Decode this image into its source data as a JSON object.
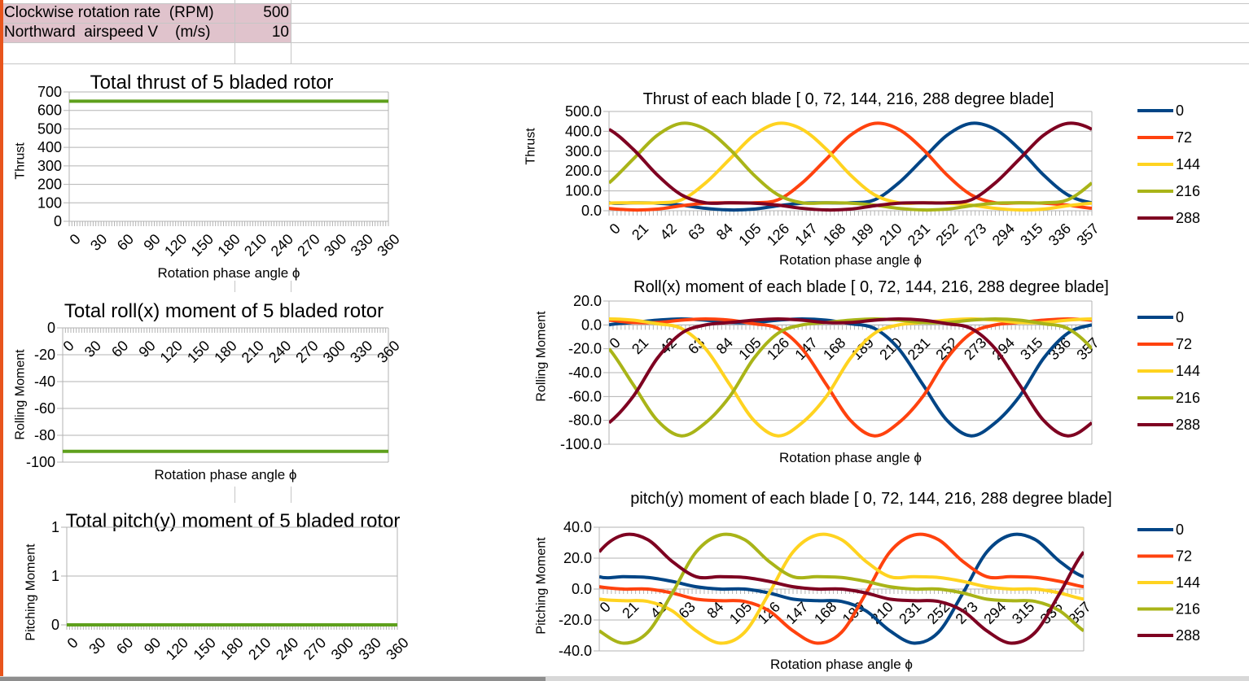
{
  "sheet": {
    "rows": [
      {
        "label": "Clockwise rotation rate  (RPM)",
        "value": "500"
      },
      {
        "label": "Northward  airspeed V    (m/s)",
        "value": "10"
      }
    ],
    "colors": {
      "input_fill": "#e0c3cc",
      "cell_cursor": "#e8541c"
    }
  },
  "chart_data": [
    {
      "id": "total-thrust",
      "type": "line",
      "title": "Total thrust  of 5 bladed rotor",
      "xlabel": "Rotation phase angle ϕ",
      "ylabel": "Thrust",
      "xlim": [
        0,
        360
      ],
      "ylim": [
        0,
        700
      ],
      "ytick_labels": [
        "0",
        "100",
        "200",
        "300",
        "400",
        "500",
        "600",
        "700"
      ],
      "xtick_values": [
        0,
        30,
        60,
        90,
        120,
        150,
        180,
        210,
        240,
        270,
        300,
        330,
        360
      ],
      "xtick_labels": [
        "0",
        "30",
        "60",
        "90",
        "120",
        "150",
        "180",
        "210",
        "240",
        "270",
        "300",
        "330",
        "360"
      ],
      "grid": true,
      "x": [
        0,
        360
      ],
      "series": [
        {
          "color": "#5ea01c",
          "values": [
            650,
            650
          ]
        }
      ]
    },
    {
      "id": "total-roll",
      "type": "line",
      "title": "Total roll(x) moment of 5 bladed rotor",
      "xlabel": "Rotation phase angle ϕ",
      "ylabel": "Rolling Moment",
      "xlim": [
        0,
        360
      ],
      "ylim": [
        -100,
        0
      ],
      "ytick_labels": [
        "-100",
        "-80",
        "-60",
        "-40",
        "-20",
        "0"
      ],
      "xtick_values": [
        0,
        30,
        60,
        90,
        120,
        150,
        180,
        210,
        240,
        270,
        300,
        330,
        360
      ],
      "xtick_labels": [
        "0",
        "30",
        "60",
        "90",
        "120",
        "150",
        "180",
        "210",
        "240",
        "270",
        "300",
        "330",
        "360"
      ],
      "grid": true,
      "x": [
        0,
        360
      ],
      "series": [
        {
          "color": "#5ea01c",
          "values": [
            -92,
            -92
          ]
        }
      ]
    },
    {
      "id": "total-pitch",
      "type": "line",
      "title": "Total pitch(y) moment of 5 bladed rotor",
      "xlabel": "",
      "ylabel": "Pitching Moment",
      "xlim": [
        0,
        360
      ],
      "ylim": [
        0,
        1
      ],
      "ytick_labels": [
        "0",
        "1",
        "1"
      ],
      "xtick_values": [
        0,
        30,
        60,
        90,
        120,
        150,
        180,
        210,
        240,
        270,
        300,
        330,
        360
      ],
      "xtick_labels": [
        "0",
        "30",
        "60",
        "90",
        "120",
        "150",
        "180",
        "210",
        "240",
        "270",
        "300",
        "330",
        "360"
      ],
      "grid": true,
      "x": [
        0,
        360
      ],
      "series": [
        {
          "color": "#5ea01c",
          "values": [
            0,
            0
          ]
        }
      ]
    },
    {
      "id": "blade-thrust",
      "type": "line",
      "title": "Thrust of each blade [ 0, 72, 144, 216, 288  degree blade]",
      "xlabel": "Rotation phase angle ϕ",
      "ylabel": "Thrust",
      "xlim": [
        0,
        360
      ],
      "ylim": [
        0,
        500
      ],
      "ytick_labels": [
        "0.0",
        "100.0",
        "200.0",
        "300.0",
        "400.0",
        "500.0"
      ],
      "xtick_values": [
        0,
        21,
        42,
        63,
        84,
        105,
        126,
        147,
        168,
        189,
        210,
        231,
        252,
        273,
        294,
        315,
        336,
        357
      ],
      "xtick_labels": [
        "0",
        "21",
        "42",
        "63",
        "84",
        "105",
        "126",
        "147",
        "168",
        "189",
        "210",
        "231",
        "252",
        "273",
        "294",
        "315",
        "336",
        "357"
      ],
      "grid": true,
      "legend": "right",
      "x": [
        0,
        18,
        36,
        54,
        72,
        90,
        108,
        126,
        144,
        162,
        180,
        198,
        216,
        234,
        252,
        270,
        288,
        306,
        324,
        342
      ],
      "series": [
        {
          "name": "0",
          "color": "#004586",
          "values": [
            40,
            40,
            38,
            28,
            12,
            4,
            8,
            25,
            38,
            40,
            40,
            55,
            140,
            260,
            380,
            440,
            410,
            310,
            180,
            80
          ]
        },
        {
          "name": "72",
          "color": "#ff420e",
          "values": [
            12,
            4,
            8,
            25,
            38,
            40,
            40,
            55,
            140,
            260,
            380,
            440,
            410,
            310,
            180,
            80,
            40,
            40,
            38,
            28
          ]
        },
        {
          "name": "144",
          "color": "#ffd320",
          "values": [
            38,
            40,
            40,
            55,
            140,
            260,
            380,
            440,
            410,
            310,
            180,
            80,
            40,
            40,
            38,
            28,
            12,
            4,
            8,
            25
          ]
        },
        {
          "name": "216",
          "color": "#a9b418",
          "values": [
            140,
            260,
            380,
            440,
            410,
            310,
            180,
            80,
            40,
            40,
            38,
            28,
            12,
            4,
            8,
            25,
            38,
            40,
            40,
            55
          ]
        },
        {
          "name": "288",
          "color": "#7e0021",
          "values": [
            410,
            310,
            180,
            80,
            40,
            40,
            38,
            28,
            12,
            4,
            8,
            25,
            38,
            40,
            40,
            55,
            140,
            260,
            380,
            440
          ]
        }
      ]
    },
    {
      "id": "blade-roll",
      "type": "line",
      "title": "Roll(x) moment of each blade [  0, 72, 144, 216, 288   degree blade]",
      "xlabel": "Rotation phase angle ϕ",
      "ylabel": "Rolling Moment",
      "xlim": [
        0,
        360
      ],
      "ylim": [
        -100,
        20
      ],
      "ytick_labels": [
        "-100.0",
        "-80.0",
        "-60.0",
        "-40.0",
        "-20.0",
        "0.0",
        "20.0"
      ],
      "xtick_values": [
        0,
        21,
        42,
        63,
        84,
        105,
        126,
        147,
        168,
        189,
        210,
        231,
        252,
        273,
        294,
        315,
        336,
        357
      ],
      "xtick_labels": [
        "0",
        "21",
        "42",
        "63",
        "84",
        "105",
        "126",
        "147",
        "168",
        "189",
        "210",
        "231",
        "252",
        "273",
        "294",
        "315",
        "336",
        "357"
      ],
      "grid": true,
      "legend": "right",
      "x": [
        0,
        18,
        36,
        54,
        72,
        90,
        108,
        126,
        144,
        162,
        180,
        198,
        216,
        234,
        252,
        270,
        288,
        306,
        324,
        342
      ],
      "series": [
        {
          "name": "0",
          "color": "#004586",
          "values": [
            0,
            2,
            4,
            5,
            4,
            2,
            2,
            4,
            5,
            4,
            1,
            -3,
            -20,
            -50,
            -80,
            -93,
            -82,
            -60,
            -28,
            -7
          ]
        },
        {
          "name": "72",
          "color": "#ff420e",
          "values": [
            4,
            2,
            2,
            4,
            5,
            4,
            1,
            -3,
            -20,
            -50,
            -80,
            -93,
            -82,
            -60,
            -28,
            -7,
            0,
            2,
            4,
            5
          ]
        },
        {
          "name": "144",
          "color": "#ffd320",
          "values": [
            5,
            4,
            1,
            -3,
            -20,
            -50,
            -80,
            -93,
            -82,
            -60,
            -28,
            -7,
            0,
            2,
            4,
            5,
            4,
            2,
            2,
            4
          ]
        },
        {
          "name": "216",
          "color": "#a9b418",
          "values": [
            -20,
            -50,
            -80,
            -93,
            -82,
            -60,
            -28,
            -7,
            0,
            2,
            4,
            5,
            4,
            2,
            2,
            4,
            5,
            4,
            1,
            -3
          ]
        },
        {
          "name": "288",
          "color": "#7e0021",
          "values": [
            -82,
            -60,
            -28,
            -7,
            0,
            2,
            4,
            5,
            4,
            2,
            2,
            4,
            5,
            4,
            1,
            -3,
            -20,
            -50,
            -80,
            -93
          ]
        }
      ]
    },
    {
      "id": "blade-pitch",
      "type": "line",
      "title": "pitch(y) moment of each blade [ 0, 72, 144, 216, 288  degree blade]",
      "xlabel": "Rotation phase angle ϕ",
      "ylabel": "Pitching Moment",
      "xlim": [
        0,
        360
      ],
      "ylim": [
        -40,
        40
      ],
      "ytick_labels": [
        "-40.0",
        "-20.0",
        "0.0",
        "20.0",
        "40.0"
      ],
      "xtick_values": [
        0,
        21,
        42,
        63,
        84,
        105,
        126,
        147,
        168,
        189,
        210,
        231,
        252,
        273,
        294,
        315,
        336,
        357
      ],
      "xtick_labels": [
        "0",
        "21",
        "42",
        "63",
        "84",
        "105",
        "126",
        "147",
        "168",
        "189",
        "210",
        "231",
        "252",
        "273",
        "294",
        "315",
        "336",
        "357"
      ],
      "grid": true,
      "legend": "right",
      "x": [
        0,
        18,
        36,
        54,
        72,
        90,
        108,
        126,
        144,
        162,
        180,
        198,
        216,
        234,
        252,
        270,
        288,
        306,
        324,
        342
      ],
      "series": [
        {
          "name": "0",
          "color": "#004586",
          "values": [
            8,
            8,
            7.5,
            5,
            1.5,
            0,
            0,
            -2.5,
            -6.5,
            -7.5,
            -8,
            -14,
            -27,
            -35,
            -28,
            -3,
            24,
            35,
            32,
            18
          ]
        },
        {
          "name": "72",
          "color": "#ff420e",
          "values": [
            1.5,
            0,
            0,
            -2.5,
            -6.5,
            -7.5,
            -8,
            -14,
            -27,
            -35,
            -28,
            -3,
            24,
            35,
            32,
            18,
            8,
            8,
            7.5,
            5
          ]
        },
        {
          "name": "144",
          "color": "#ffd320",
          "values": [
            -6.5,
            -7.5,
            -8,
            -14,
            -27,
            -35,
            -28,
            -3,
            24,
            35,
            32,
            18,
            8,
            8,
            7.5,
            5,
            1.5,
            0,
            0,
            -2.5
          ]
        },
        {
          "name": "216",
          "color": "#a9b418",
          "values": [
            -27,
            -35,
            -28,
            -3,
            24,
            35,
            32,
            18,
            8,
            8,
            7.5,
            5,
            1.5,
            0,
            0,
            -2.5,
            -6.5,
            -7.5,
            -8,
            -14
          ]
        },
        {
          "name": "288",
          "color": "#7e0021",
          "values": [
            24,
            35,
            32,
            18,
            8,
            8,
            7.5,
            5,
            1.5,
            0,
            0,
            -2.5,
            -6.5,
            -7.5,
            -8,
            -14,
            -27,
            -35,
            -28,
            -3
          ]
        }
      ]
    }
  ]
}
